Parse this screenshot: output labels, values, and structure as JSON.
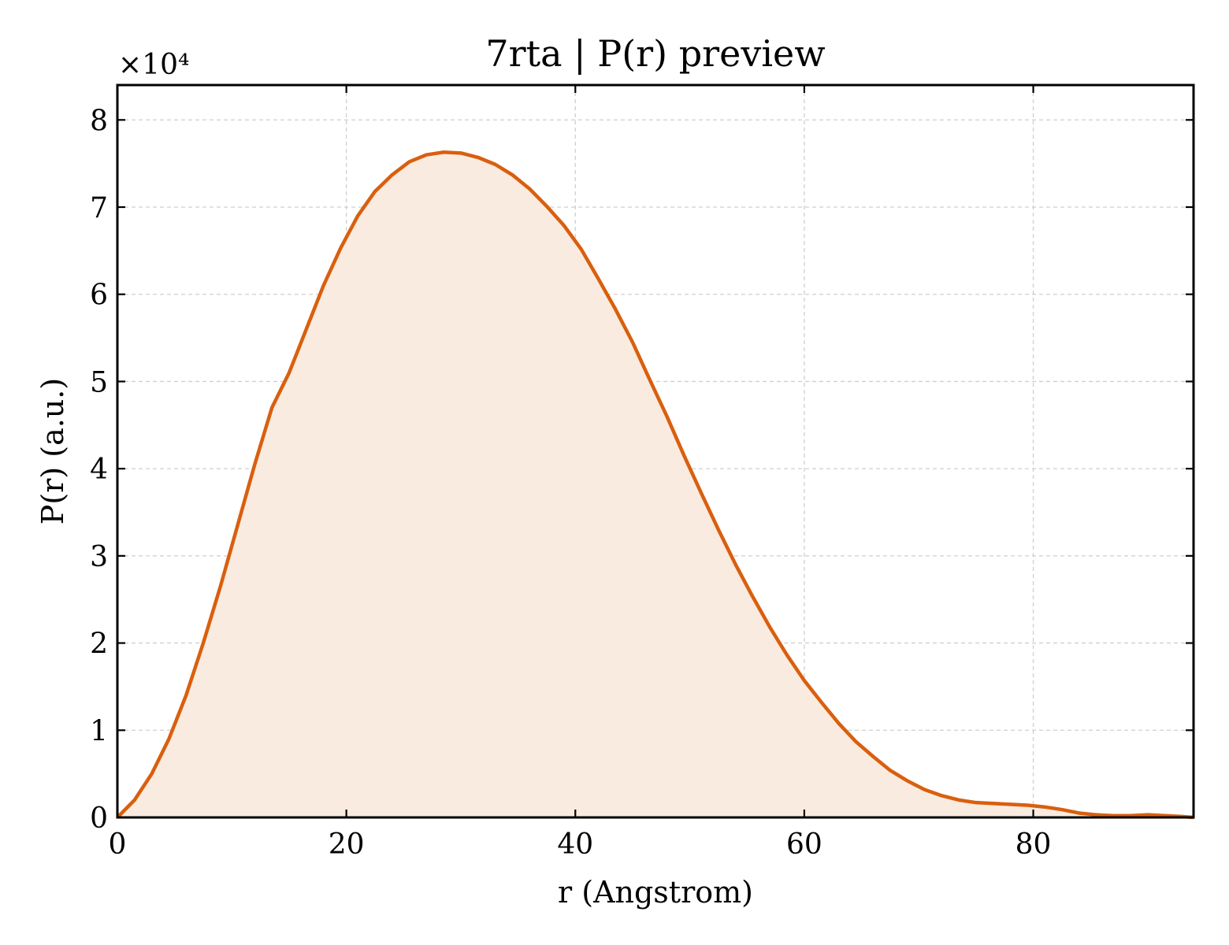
{
  "chart_data": {
    "type": "area",
    "title": "7rta | P(r) preview",
    "xlabel": "r (Angstrom)",
    "ylabel": "P(r) (a.u.)",
    "y_offset_label": "×10⁴",
    "xlim": [
      0,
      94
    ],
    "ylim": [
      0,
      84000
    ],
    "x_ticks": [
      0,
      20,
      40,
      60,
      80
    ],
    "y_ticks": [
      0,
      10000,
      20000,
      30000,
      40000,
      50000,
      60000,
      70000,
      80000
    ],
    "x_tick_labels": [
      "0",
      "20",
      "40",
      "60",
      "80"
    ],
    "y_tick_labels": [
      "0",
      "1",
      "2",
      "3",
      "4",
      "5",
      "6",
      "7",
      "8"
    ],
    "grid": true,
    "line_color": "#d95f0e",
    "fill_color": "#f9ebe0",
    "series": [
      {
        "x": [
          0,
          1.5,
          3,
          4.5,
          6,
          7.5,
          9,
          10.5,
          12,
          13.5,
          15,
          16.5,
          18,
          19.5,
          21,
          22.5,
          24,
          25.5,
          27,
          28.5,
          30,
          31.5,
          33,
          34.5,
          36,
          37.5,
          39,
          40.5,
          42,
          43.5,
          45,
          46.5,
          48,
          49.5,
          51,
          52.5,
          54,
          55.5,
          57,
          58.5,
          60,
          61.5,
          63,
          64.5,
          66,
          67.5,
          69,
          70.5,
          72,
          73.5,
          75,
          76.5,
          78,
          79.5,
          81,
          82.5,
          84,
          85.5,
          87,
          88.5,
          90,
          91.5,
          93,
          94
        ],
        "y": [
          0,
          2000,
          5000,
          9000,
          14000,
          20000,
          26500,
          33500,
          40500,
          47000,
          51000,
          56000,
          61000,
          65300,
          69000,
          71800,
          73700,
          75200,
          76000,
          76300,
          76200,
          75700,
          74900,
          73700,
          72100,
          70100,
          67900,
          65200,
          61800,
          58300,
          54500,
          50200,
          46000,
          41500,
          37200,
          33000,
          29000,
          25300,
          21800,
          18600,
          15700,
          13200,
          10800,
          8700,
          7000,
          5400,
          4200,
          3200,
          2500,
          2000,
          1700,
          1600,
          1500,
          1400,
          1200,
          900,
          500,
          300,
          200,
          200,
          300,
          200,
          100,
          0
        ]
      }
    ]
  }
}
